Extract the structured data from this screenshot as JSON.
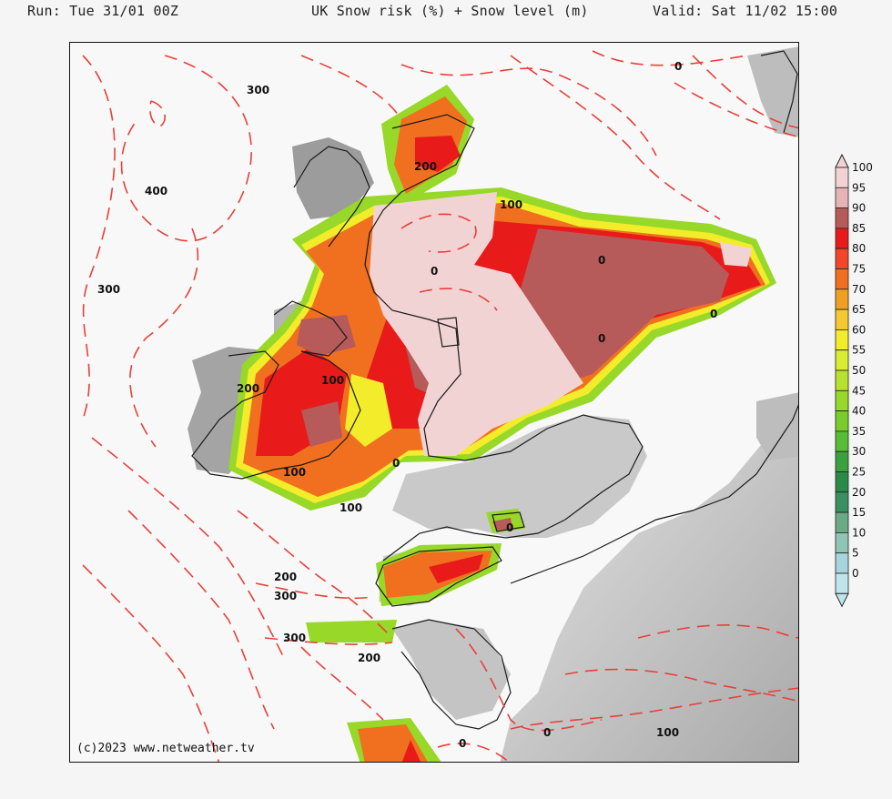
{
  "header": {
    "run": "Run: Tue 31/01 00Z",
    "title": "UK Snow risk (%) + Snow level (m)",
    "valid": "Valid: Sat 11/02 15:00"
  },
  "copyright": "(c)2023 www.netweather.tv",
  "legend": {
    "levels": [
      "100",
      "95",
      "90",
      "85",
      "80",
      "75",
      "70",
      "65",
      "60",
      "55",
      "50",
      "45",
      "40",
      "35",
      "30",
      "25",
      "20",
      "15",
      "10",
      "5",
      "0"
    ],
    "colors": [
      "#f2d3d3",
      "#e6b4b4",
      "#b65a5a",
      "#e81a1a",
      "#f2452a",
      "#f07020",
      "#f0a020",
      "#f4c830",
      "#f2ec2a",
      "#d8ec30",
      "#b8e030",
      "#98d828",
      "#78cc2c",
      "#58bc34",
      "#3aa040",
      "#2a8a48",
      "#3a9060",
      "#6aaa84",
      "#90c4b4",
      "#a8d4de",
      "#c0e4ec"
    ]
  },
  "contour_labels": [
    "300",
    "400",
    "300",
    "200",
    "100",
    "100",
    "0",
    "100",
    "0",
    "0",
    "0",
    "200",
    "100",
    "200",
    "300",
    "300",
    "200",
    "0",
    "0",
    "100",
    "0"
  ],
  "colors": {
    "snow_level_contour": "#e8403a",
    "coastline": "#1a1a1a",
    "background": "#f4f5f4"
  }
}
